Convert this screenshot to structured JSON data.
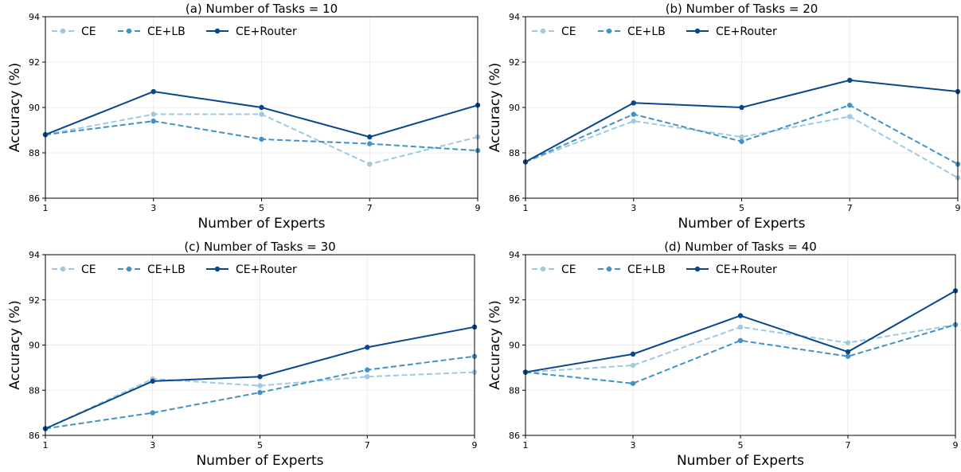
{
  "chart_data": [
    {
      "type": "line",
      "title": "(a) Number of Tasks = 10",
      "xlabel": "Number of Experts",
      "ylabel": "Accuracy (%)",
      "x": [
        1,
        3,
        5,
        7,
        9
      ],
      "xticks": [
        "1",
        "3",
        "5",
        "7",
        "9"
      ],
      "yticks": [
        "86",
        "88",
        "90",
        "92",
        "94"
      ],
      "ylim": [
        86,
        94
      ],
      "grid": true,
      "legend_position": "top-left",
      "series": [
        {
          "name": "CE",
          "values": [
            88.8,
            89.7,
            89.7,
            87.5,
            88.7
          ],
          "color": "#9ecae1",
          "style": "dashed"
        },
        {
          "name": "CE+LB",
          "values": [
            88.8,
            89.4,
            88.6,
            88.4,
            88.1
          ],
          "color": "#4292c6",
          "style": "dashed"
        },
        {
          "name": "CE+Router",
          "values": [
            88.8,
            90.7,
            90.0,
            88.7,
            90.1
          ],
          "color": "#08478d",
          "style": "solid"
        }
      ]
    },
    {
      "type": "line",
      "title": "(b) Number of Tasks = 20",
      "xlabel": "Number of Experts",
      "ylabel": "Accuracy (%)",
      "x": [
        1,
        3,
        5,
        7,
        9
      ],
      "xticks": [
        "1",
        "3",
        "5",
        "7",
        "9"
      ],
      "yticks": [
        "86",
        "88",
        "90",
        "92",
        "94"
      ],
      "ylim": [
        86,
        94
      ],
      "grid": true,
      "legend_position": "top-left",
      "series": [
        {
          "name": "CE",
          "values": [
            87.6,
            89.4,
            88.7,
            89.6,
            86.9
          ],
          "color": "#9ecae1",
          "style": "dashed"
        },
        {
          "name": "CE+LB",
          "values": [
            87.6,
            89.7,
            88.5,
            90.1,
            87.5
          ],
          "color": "#4292c6",
          "style": "dashed"
        },
        {
          "name": "CE+Router",
          "values": [
            87.6,
            90.2,
            90.0,
            91.2,
            90.7
          ],
          "color": "#08478d",
          "style": "solid"
        }
      ]
    },
    {
      "type": "line",
      "title": "(c) Number of Tasks = 30",
      "xlabel": "Number of Experts",
      "ylabel": "Accuracy (%)",
      "x": [
        1,
        3,
        5,
        7,
        9
      ],
      "xticks": [
        "1",
        "3",
        "5",
        "7",
        "9"
      ],
      "yticks": [
        "86",
        "88",
        "90",
        "92",
        "94"
      ],
      "ylim": [
        86,
        94
      ],
      "grid": true,
      "legend_position": "top-left",
      "series": [
        {
          "name": "CE",
          "values": [
            86.3,
            88.5,
            88.2,
            88.6,
            88.8
          ],
          "color": "#9ecae1",
          "style": "dashed"
        },
        {
          "name": "CE+LB",
          "values": [
            86.3,
            87.0,
            87.9,
            88.9,
            89.5
          ],
          "color": "#4292c6",
          "style": "dashed"
        },
        {
          "name": "CE+Router",
          "values": [
            86.3,
            88.4,
            88.6,
            89.9,
            90.8
          ],
          "color": "#08478d",
          "style": "solid"
        }
      ]
    },
    {
      "type": "line",
      "title": "(d) Number of Tasks = 40",
      "xlabel": "Number of Experts",
      "ylabel": "Accuracy (%)",
      "x": [
        1,
        3,
        5,
        7,
        9
      ],
      "xticks": [
        "1",
        "3",
        "5",
        "7",
        "9"
      ],
      "yticks": [
        "86",
        "88",
        "90",
        "92",
        "94"
      ],
      "ylim": [
        86,
        94
      ],
      "grid": true,
      "legend_position": "top-left",
      "series": [
        {
          "name": "CE",
          "values": [
            88.8,
            89.1,
            90.8,
            90.1,
            90.9
          ],
          "color": "#9ecae1",
          "style": "dashed"
        },
        {
          "name": "CE+LB",
          "values": [
            88.8,
            88.3,
            90.2,
            89.5,
            90.9
          ],
          "color": "#4292c6",
          "style": "dashed"
        },
        {
          "name": "CE+Router",
          "values": [
            88.8,
            89.6,
            91.3,
            89.7,
            92.4
          ],
          "color": "#08478d",
          "style": "solid"
        }
      ]
    }
  ]
}
